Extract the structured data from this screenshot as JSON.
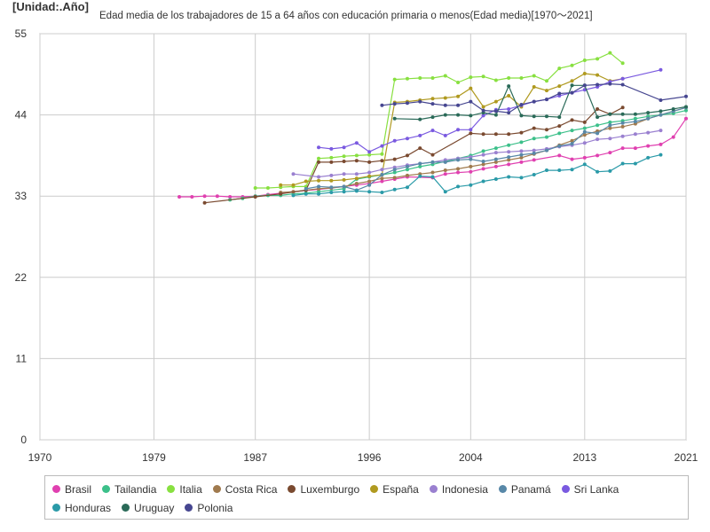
{
  "chart_data": {
    "type": "line",
    "unit_label": "[Unidad:.Año]",
    "title": "Edad media de los trabajadores de 15 a 64 años con educación primaria o menos(Edad media)[1970～2021]",
    "xlabel": "",
    "ylabel": "",
    "xlim": [
      1970,
      2021
    ],
    "ylim": [
      0,
      55
    ],
    "x_ticks": [
      1970,
      1979,
      1987,
      1996,
      2004,
      2013,
      2021
    ],
    "y_ticks": [
      0,
      11,
      22,
      33,
      44,
      55
    ],
    "grid": true,
    "legend_position": "bottom",
    "series": [
      {
        "name": "Brasil",
        "color": "#e040b0",
        "x": [
          1981,
          1982,
          1983,
          1984,
          1985,
          1986,
          1987,
          1988,
          1989,
          1990,
          1992,
          1993,
          1995,
          1996,
          1997,
          1998,
          1999,
          2001,
          2002,
          2003,
          2004,
          2005,
          2006,
          2007,
          2008,
          2009,
          2011,
          2012,
          2013,
          2014,
          2015,
          2016,
          2017,
          2018,
          2019,
          2020,
          2021
        ],
        "y": [
          32.9,
          32.9,
          33.0,
          33.0,
          32.9,
          32.9,
          33.0,
          33.2,
          33.4,
          33.6,
          33.9,
          34.1,
          34.5,
          34.7,
          35.0,
          35.3,
          35.6,
          35.5,
          36.0,
          36.2,
          36.3,
          36.7,
          37.0,
          37.3,
          37.6,
          37.9,
          38.5,
          38.0,
          38.2,
          38.5,
          38.9,
          39.5,
          39.5,
          39.8,
          40.0,
          41.0,
          43.5
        ]
      },
      {
        "name": "Tailandia",
        "color": "#3cc08a",
        "x": [
          1985,
          1986,
          1987,
          1988,
          1989,
          1990,
          1991,
          1992,
          1994,
          1995,
          1996,
          1997,
          1998,
          1999,
          2000,
          2001,
          2002,
          2003,
          2004,
          2005,
          2006,
          2007,
          2008,
          2009,
          2010,
          2011,
          2012,
          2013,
          2014,
          2015,
          2016,
          2017,
          2018,
          2019,
          2020,
          2021
        ],
        "y": [
          32.5,
          32.7,
          33.0,
          33.1,
          33.1,
          33.3,
          33.4,
          33.6,
          34.0,
          35.3,
          35.6,
          35.9,
          36.2,
          36.6,
          37.0,
          37.3,
          37.7,
          38.1,
          38.5,
          39.1,
          39.5,
          39.9,
          40.3,
          40.8,
          41.0,
          41.5,
          41.9,
          42.2,
          42.6,
          43.0,
          43.2,
          43.5,
          43.8,
          44.0,
          44.2,
          44.6
        ]
      },
      {
        "name": "Italia",
        "color": "#88e040",
        "x": [
          1987,
          1988,
          1989,
          1990,
          1991,
          1992,
          1993,
          1994,
          1995,
          1996,
          1997,
          1998,
          1999,
          2000,
          2001,
          2002,
          2003,
          2004,
          2005,
          2006,
          2007,
          2008,
          2009,
          2010,
          2011,
          2012,
          2013,
          2014,
          2015,
          2016
        ],
        "y": [
          34.1,
          34.1,
          34.2,
          34.3,
          34.3,
          38.1,
          38.2,
          38.4,
          38.5,
          38.6,
          38.7,
          48.8,
          48.9,
          49.0,
          49.0,
          49.3,
          48.4,
          49.1,
          49.2,
          48.7,
          49.0,
          49.0,
          49.3,
          48.6,
          50.3,
          50.7,
          51.4,
          51.6,
          52.4,
          51.0
        ]
      },
      {
        "name": "Costa Rica",
        "color": "#a07a4e",
        "x": [
          1989,
          1990,
          1991,
          1992,
          1993,
          1994,
          1995,
          1996,
          1997,
          1998,
          1999,
          2000,
          2001,
          2002,
          2003,
          2004,
          2005,
          2006,
          2007,
          2008,
          2009,
          2010,
          2011,
          2012,
          2013,
          2014,
          2015,
          2016,
          2017,
          2018,
          2019,
          2020,
          2021
        ],
        "y": [
          33.5,
          33.6,
          33.8,
          34.0,
          34.1,
          34.3,
          34.7,
          35.0,
          35.4,
          35.5,
          35.8,
          36.0,
          36.2,
          36.5,
          36.7,
          37.0,
          37.3,
          37.6,
          37.9,
          38.2,
          38.7,
          39.2,
          39.9,
          40.5,
          41.3,
          41.8,
          42.2,
          42.4,
          42.8,
          43.5,
          44.0,
          44.5,
          45.0
        ]
      },
      {
        "name": "Luxemburgo",
        "color": "#7a4a30",
        "x": [
          1983,
          1987,
          1989,
          1991,
          1992,
          1993,
          1994,
          1995,
          1996,
          1997,
          1998,
          1999,
          2000,
          2001,
          2004,
          2005,
          2006,
          2007,
          2008,
          2009,
          2010,
          2011,
          2012,
          2013,
          2014,
          2015,
          2016
        ],
        "y": [
          32.1,
          32.9,
          33.3,
          33.8,
          37.6,
          37.6,
          37.7,
          37.8,
          37.6,
          37.8,
          38.0,
          38.5,
          39.5,
          38.6,
          41.5,
          41.4,
          41.4,
          41.4,
          41.6,
          42.2,
          42.0,
          42.5,
          43.3,
          43.0,
          44.8,
          44.1,
          45.0
        ]
      },
      {
        "name": "España",
        "color": "#b09a20",
        "x": [
          1989,
          1990,
          1991,
          1992,
          1993,
          1994,
          1995,
          1996,
          1997,
          1998,
          1999,
          2000,
          2001,
          2002,
          2003,
          2004,
          2005,
          2006,
          2007,
          2008,
          2009,
          2010,
          2011,
          2012,
          2013,
          2014,
          2015,
          2016
        ],
        "y": [
          34.5,
          34.5,
          35.0,
          35.1,
          35.1,
          35.2,
          35.4,
          35.7,
          35.9,
          45.7,
          45.8,
          46.0,
          46.2,
          46.3,
          46.5,
          47.6,
          45.1,
          45.8,
          46.6,
          45.1,
          47.8,
          47.3,
          47.9,
          48.6,
          49.6,
          49.4,
          48.6,
          48.9
        ]
      },
      {
        "name": "Indonesia",
        "color": "#9a80d0",
        "x": [
          1990,
          1992,
          1993,
          1994,
          1995,
          1996,
          1997,
          1998,
          1999,
          2000,
          2001,
          2002,
          2003,
          2004,
          2005,
          2006,
          2007,
          2008,
          2009,
          2010,
          2011,
          2012,
          2013,
          2014,
          2015,
          2016,
          2017,
          2018,
          2019
        ],
        "y": [
          36.0,
          35.6,
          35.8,
          36.0,
          36.0,
          36.2,
          36.6,
          36.9,
          37.2,
          37.4,
          37.6,
          37.9,
          38.1,
          38.3,
          38.6,
          38.9,
          39.0,
          39.1,
          39.2,
          39.4,
          39.7,
          39.9,
          40.2,
          40.7,
          40.8,
          41.1,
          41.4,
          41.6,
          41.9
        ]
      },
      {
        "name": "Panamá",
        "color": "#5888a8",
        "x": [
          1991,
          1992,
          1993,
          1994,
          1995,
          1996,
          1997,
          1998,
          1999,
          2000,
          2001,
          2002,
          2003,
          2004,
          2005,
          2006,
          2007,
          2008,
          2009,
          2010,
          2011,
          2012,
          2013,
          2014,
          2015,
          2016,
          2017,
          2018,
          2019,
          2020,
          2021
        ],
        "y": [
          34.0,
          34.3,
          34.2,
          34.3,
          33.8,
          34.5,
          35.9,
          36.6,
          37.0,
          37.4,
          37.6,
          37.6,
          37.9,
          38.0,
          37.7,
          38.0,
          38.3,
          38.6,
          38.8,
          39.2,
          39.8,
          40.1,
          41.7,
          41.5,
          42.6,
          42.9,
          43.1,
          43.5,
          44.0,
          44.5,
          45.0
        ]
      },
      {
        "name": "Sri Lanka",
        "color": "#7a5ae0",
        "x": [
          1992,
          1993,
          1994,
          1995,
          1996,
          1997,
          1998,
          1999,
          2000,
          2001,
          2002,
          2003,
          2004,
          2005,
          2006,
          2007,
          2008,
          2009,
          2010,
          2011,
          2012,
          2013,
          2014,
          2015,
          2016,
          2019
        ],
        "y": [
          39.6,
          39.4,
          39.6,
          40.2,
          39.0,
          39.8,
          40.5,
          40.8,
          41.2,
          41.9,
          41.2,
          42.0,
          42.0,
          43.9,
          44.7,
          44.8,
          45.3,
          45.8,
          46.1,
          46.6,
          47.0,
          47.4,
          47.8,
          48.5,
          48.9,
          50.1
        ]
      },
      {
        "name": "Honduras",
        "color": "#2a9aa8",
        "x": [
          1990,
          1991,
          1992,
          1993,
          1994,
          1995,
          1996,
          1997,
          1998,
          1999,
          2000,
          2001,
          2002,
          2003,
          2004,
          2005,
          2006,
          2007,
          2008,
          2009,
          2010,
          2011,
          2012,
          2013,
          2014,
          2015,
          2016,
          2017,
          2018,
          2019
        ],
        "y": [
          33.1,
          33.3,
          33.3,
          33.5,
          33.6,
          33.7,
          33.6,
          33.5,
          33.9,
          34.2,
          35.7,
          35.6,
          33.6,
          34.3,
          34.5,
          35.0,
          35.3,
          35.6,
          35.5,
          35.9,
          36.5,
          36.5,
          36.6,
          37.3,
          36.3,
          36.4,
          37.4,
          37.4,
          38.2,
          38.6
        ]
      },
      {
        "name": "Uruguay",
        "color": "#2a6a58",
        "x": [
          1998,
          2000,
          2001,
          2002,
          2003,
          2004,
          2005,
          2006,
          2007,
          2008,
          2009,
          2010,
          2011,
          2012,
          2013,
          2014,
          2015,
          2016,
          2017,
          2018,
          2019,
          2020,
          2021
        ],
        "y": [
          43.5,
          43.4,
          43.7,
          44.0,
          44.0,
          43.9,
          44.3,
          44.0,
          47.9,
          43.9,
          43.8,
          43.8,
          43.7,
          48.0,
          48.0,
          43.7,
          44.1,
          44.1,
          44.1,
          44.3,
          44.5,
          44.8,
          45.1
        ]
      },
      {
        "name": "Polonia",
        "color": "#464690",
        "x": [
          1997,
          1998,
          1999,
          2000,
          2001,
          2002,
          2003,
          2004,
          2005,
          2006,
          2007,
          2008,
          2009,
          2010,
          2011,
          2012,
          2013,
          2014,
          2015,
          2016,
          2019,
          2021
        ],
        "y": [
          45.3,
          45.5,
          45.6,
          45.8,
          45.5,
          45.3,
          45.3,
          45.8,
          44.6,
          44.5,
          44.3,
          45.4,
          45.8,
          46.1,
          46.9,
          47.0,
          48.0,
          48.1,
          48.2,
          48.1,
          46.0,
          46.5
        ]
      }
    ]
  }
}
